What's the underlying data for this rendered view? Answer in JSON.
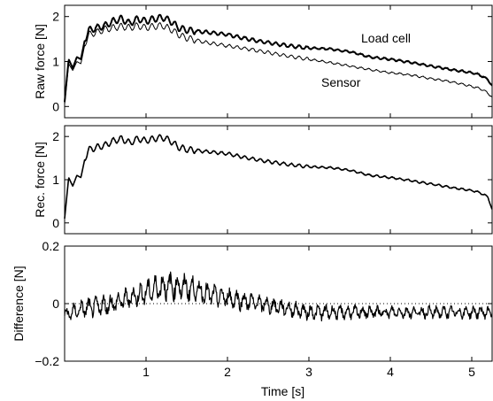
{
  "chart_data": [
    {
      "type": "line",
      "ylabel": "Raw force [N]",
      "xlim": [
        0,
        5.25
      ],
      "ylim": [
        -0.25,
        2.25
      ],
      "yticks": [
        0,
        1,
        2
      ],
      "series": [
        {
          "name": "Load cell",
          "x": [
            0,
            0.05,
            0.1,
            0.15,
            0.2,
            0.25,
            0.3,
            0.4,
            0.5,
            0.6,
            0.7,
            0.8,
            0.9,
            1.0,
            1.1,
            1.2,
            1.3,
            1.4,
            1.5,
            1.75,
            2.0,
            2.25,
            2.5,
            2.75,
            3.0,
            3.25,
            3.5,
            3.75,
            4.0,
            4.25,
            4.5,
            4.75,
            5.0,
            5.1,
            5.2,
            5.25
          ],
          "y": [
            0.1,
            1.05,
            0.85,
            1.1,
            1.05,
            1.5,
            1.7,
            1.75,
            1.8,
            1.9,
            1.95,
            1.85,
            1.95,
            1.9,
            1.95,
            1.98,
            1.9,
            1.75,
            1.7,
            1.65,
            1.6,
            1.5,
            1.42,
            1.35,
            1.3,
            1.28,
            1.22,
            1.1,
            1.05,
            0.98,
            0.9,
            0.82,
            0.75,
            0.7,
            0.6,
            0.45
          ]
        },
        {
          "name": "Sensor",
          "x": [
            0,
            0.05,
            0.1,
            0.15,
            0.2,
            0.25,
            0.3,
            0.4,
            0.5,
            0.6,
            0.7,
            0.8,
            0.9,
            1.0,
            1.1,
            1.2,
            1.3,
            1.4,
            1.5,
            1.75,
            2.0,
            2.25,
            2.5,
            2.75,
            3.0,
            3.25,
            3.5,
            3.75,
            4.0,
            4.25,
            4.5,
            4.75,
            5.0,
            5.1,
            5.2,
            5.25
          ],
          "y": [
            0.05,
            0.95,
            0.8,
            1.0,
            0.95,
            1.4,
            1.6,
            1.65,
            1.72,
            1.75,
            1.78,
            1.75,
            1.8,
            1.75,
            1.78,
            1.8,
            1.72,
            1.6,
            1.52,
            1.42,
            1.35,
            1.28,
            1.2,
            1.12,
            1.05,
            0.98,
            0.9,
            0.82,
            0.75,
            0.7,
            0.62,
            0.55,
            0.45,
            0.4,
            0.3,
            0.2
          ]
        }
      ],
      "annotations": [
        "Load cell",
        "Sensor"
      ]
    },
    {
      "type": "line",
      "ylabel": "Rec. force [N]",
      "xlim": [
        0,
        5.25
      ],
      "ylim": [
        -0.25,
        2.25
      ],
      "yticks": [
        0,
        1,
        2
      ],
      "series": [
        {
          "x": [
            0,
            0.05,
            0.1,
            0.15,
            0.2,
            0.25,
            0.3,
            0.4,
            0.5,
            0.6,
            0.7,
            0.8,
            0.9,
            1.0,
            1.1,
            1.2,
            1.3,
            1.4,
            1.5,
            1.75,
            2.0,
            2.25,
            2.5,
            2.75,
            3.0,
            3.25,
            3.5,
            3.75,
            4.0,
            4.25,
            4.5,
            4.75,
            5.0,
            5.1,
            5.2,
            5.25
          ],
          "y": [
            0.1,
            1.05,
            0.85,
            1.1,
            1.05,
            1.5,
            1.7,
            1.75,
            1.8,
            1.9,
            1.95,
            1.85,
            1.95,
            1.9,
            1.95,
            1.98,
            1.9,
            1.75,
            1.7,
            1.65,
            1.6,
            1.5,
            1.42,
            1.35,
            1.3,
            1.28,
            1.22,
            1.1,
            1.05,
            0.98,
            0.9,
            0.82,
            0.75,
            0.7,
            0.6,
            0.3
          ]
        }
      ]
    },
    {
      "type": "line",
      "ylabel": "Difference [N]",
      "xlabel": "Time [s]",
      "xlim": [
        0,
        5.25
      ],
      "ylim": [
        -0.2,
        0.2
      ],
      "yticks": [
        -0.2,
        0,
        0.2
      ],
      "ytick_labels": [
        "−0.2",
        "0",
        "0.2"
      ],
      "xticks": [
        1,
        2,
        3,
        4,
        5
      ],
      "zero_line": true,
      "series": [
        {
          "x": [
            0,
            0.2,
            0.4,
            0.6,
            0.8,
            1.0,
            1.2,
            1.4,
            1.6,
            1.8,
            2.0,
            2.2,
            2.4,
            2.6,
            2.8,
            3.0,
            3.2,
            3.4,
            3.6,
            3.8,
            4.0,
            4.2,
            4.4,
            4.6,
            4.8,
            5.0,
            5.25
          ],
          "y": [
            -0.04,
            -0.02,
            -0.01,
            0.0,
            0.02,
            0.04,
            0.06,
            0.06,
            0.05,
            0.03,
            0.02,
            0.01,
            0.0,
            -0.01,
            -0.02,
            -0.03,
            -0.03,
            -0.03,
            -0.03,
            -0.03,
            -0.03,
            -0.03,
            -0.03,
            -0.03,
            -0.03,
            -0.03,
            -0.03
          ],
          "noise": [
            0.02,
            0.025,
            0.03,
            0.03,
            0.03,
            0.035,
            0.04,
            0.04,
            0.035,
            0.03,
            0.03,
            0.028,
            0.026,
            0.024,
            0.022,
            0.022,
            0.022,
            0.02,
            0.02,
            0.02,
            0.018,
            0.018,
            0.018,
            0.018,
            0.018,
            0.018,
            0.018
          ]
        }
      ]
    }
  ]
}
